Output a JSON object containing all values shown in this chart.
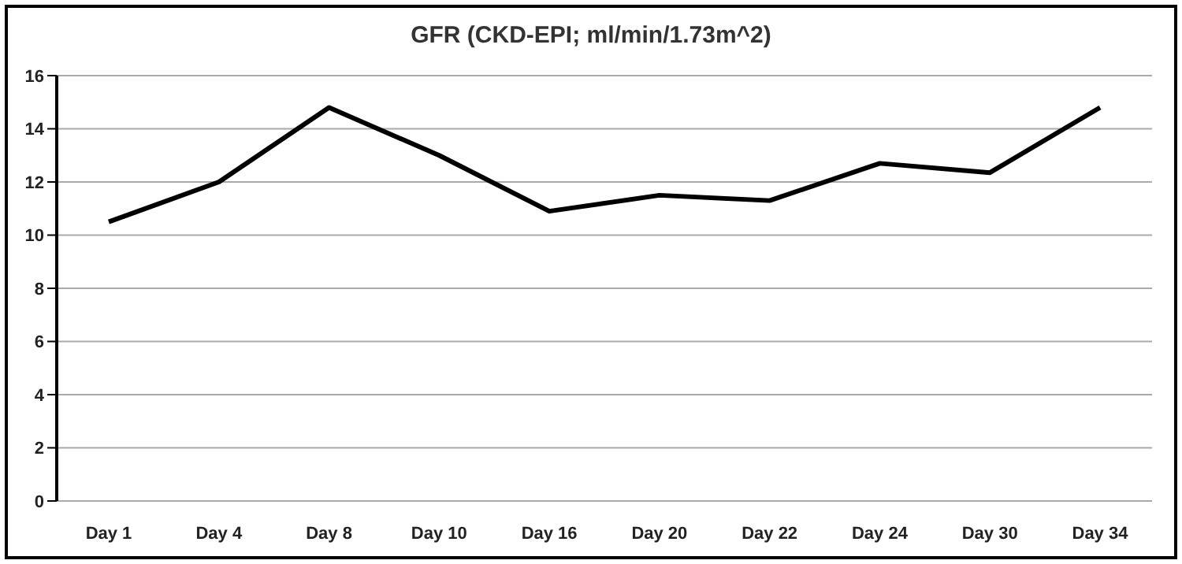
{
  "chart_data": {
    "type": "line",
    "title": "GFR (CKD-EPI; ml/min/1.73m^2)",
    "categories": [
      "Day 1",
      "Day 4",
      "Day 8",
      "Day 10",
      "Day 16",
      "Day 20",
      "Day 22",
      "Day 24",
      "Day 30",
      "Day 34"
    ],
    "series": [
      {
        "color": "#000000",
        "values": [
          10.5,
          12.0,
          14.8,
          13.0,
          10.9,
          11.5,
          11.3,
          12.7,
          12.35,
          14.8
        ]
      }
    ],
    "ylim": [
      0,
      16
    ],
    "yticks": [
      0,
      2,
      4,
      6,
      8,
      10,
      12,
      14,
      16
    ],
    "grid": "y",
    "marker": "none",
    "line_style": "solid"
  }
}
